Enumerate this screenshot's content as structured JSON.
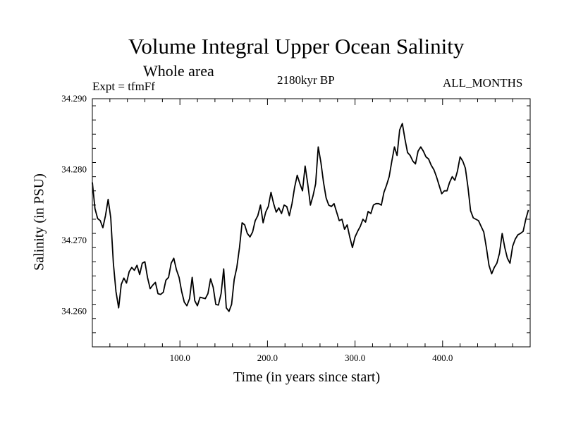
{
  "chart_data": {
    "type": "line",
    "title": "Volume Integral Upper Ocean Salinity",
    "subtitle": "Whole area",
    "annotations": {
      "experiment": "Expt = tfmFf",
      "period": "2180kyr BP",
      "months": "ALL_MONTHS"
    },
    "xlabel": "Time (in years since start)",
    "ylabel": "Salinity (in PSU)",
    "xlim": [
      0,
      500
    ],
    "ylim": [
      34.255,
      34.29
    ],
    "x_ticks": [
      100,
      200,
      300,
      400
    ],
    "x_tick_labels": [
      "100.0",
      "200.0",
      "300.0",
      "400.0"
    ],
    "y_ticks": [
      34.26,
      34.27,
      34.28,
      34.29
    ],
    "y_tick_labels": [
      "34.260",
      "34.270",
      "34.280",
      "34.290"
    ],
    "grid": false,
    "line_color": "#000000",
    "series": [
      {
        "name": "Salinity",
        "x": [
          0,
          3,
          6,
          9,
          12,
          15,
          18,
          21,
          24,
          27,
          30,
          33,
          36,
          39,
          42,
          45,
          48,
          51,
          54,
          57,
          60,
          63,
          66,
          69,
          72,
          75,
          78,
          81,
          84,
          87,
          90,
          93,
          96,
          99,
          102,
          105,
          108,
          111,
          114,
          117,
          120,
          123,
          126,
          129,
          132,
          135,
          138,
          141,
          144,
          147,
          150,
          153,
          156,
          159,
          162,
          165,
          168,
          171,
          174,
          177,
          180,
          183,
          186,
          189,
          192,
          195,
          198,
          201,
          204,
          207,
          210,
          213,
          216,
          219,
          222,
          225,
          228,
          231,
          234,
          237,
          240,
          243,
          246,
          249,
          252,
          255,
          258,
          261,
          264,
          267,
          270,
          273,
          276,
          279,
          282,
          285,
          288,
          291,
          294,
          297,
          300,
          303,
          306,
          309,
          312,
          315,
          318,
          321,
          324,
          327,
          330,
          333,
          336,
          339,
          342,
          345,
          348,
          351,
          354,
          357,
          360,
          363,
          366,
          369,
          372,
          375,
          378,
          381,
          384,
          387,
          390,
          393,
          396,
          399,
          402,
          405,
          408,
          411,
          414,
          417,
          420,
          423,
          426,
          429,
          432,
          435,
          438,
          441,
          444,
          447,
          450,
          453,
          456,
          459,
          462,
          465,
          468,
          471,
          474,
          477,
          480,
          483,
          486,
          489,
          492,
          495,
          498
        ],
        "values": [
          34.2782,
          34.2745,
          34.2731,
          34.2728,
          34.2718,
          34.2735,
          34.2758,
          34.2732,
          34.2668,
          34.2628,
          34.2605,
          34.2638,
          34.2647,
          34.264,
          34.2656,
          34.2662,
          34.2658,
          34.2665,
          34.2652,
          34.2668,
          34.267,
          34.2648,
          34.2632,
          34.2637,
          34.2641,
          34.2625,
          34.2624,
          34.2627,
          34.2644,
          34.2648,
          34.2668,
          34.2675,
          34.2659,
          34.2648,
          34.2628,
          34.2613,
          34.2608,
          34.2618,
          34.2648,
          34.2615,
          34.2608,
          34.262,
          34.2619,
          34.2618,
          34.2625,
          34.2646,
          34.2634,
          34.261,
          34.2609,
          34.2625,
          34.266,
          34.2605,
          34.26,
          34.261,
          34.2645,
          34.2662,
          34.269,
          34.2725,
          34.2722,
          34.271,
          34.2705,
          34.2712,
          34.2728,
          34.2735,
          34.275,
          34.2725,
          34.274,
          34.2748,
          34.2768,
          34.2752,
          34.274,
          34.2746,
          34.2738,
          34.275,
          34.2748,
          34.2735,
          34.2752,
          34.2775,
          34.2792,
          34.278,
          34.277,
          34.2805,
          34.278,
          34.275,
          34.2763,
          34.278,
          34.2832,
          34.281,
          34.2782,
          34.276,
          34.275,
          34.2748,
          34.2752,
          34.274,
          34.2728,
          34.273,
          34.2716,
          34.2722,
          34.2705,
          34.269,
          34.2705,
          34.2713,
          34.272,
          34.273,
          34.2726,
          34.2741,
          34.2738,
          34.275,
          34.2752,
          34.2752,
          34.275,
          34.2768,
          34.2778,
          34.279,
          34.2812,
          34.2832,
          34.282,
          34.2856,
          34.2865,
          34.2843,
          34.2824,
          34.282,
          34.2812,
          34.2808,
          34.2826,
          34.2832,
          34.2826,
          34.2818,
          34.2815,
          34.2806,
          34.28,
          34.279,
          34.2778,
          34.2766,
          34.277,
          34.277,
          34.2782,
          34.279,
          34.2785,
          34.2798,
          34.2818,
          34.2812,
          34.2802,
          34.2775,
          34.2742,
          34.2732,
          34.273,
          34.2728,
          34.272,
          34.2712,
          34.269,
          34.2665,
          34.2653,
          34.2662,
          34.2668,
          34.2682,
          34.271,
          34.269,
          34.2675,
          34.2668,
          34.2692,
          34.2702,
          34.2708,
          34.271,
          34.2713,
          34.273,
          34.2743
        ]
      }
    ]
  }
}
